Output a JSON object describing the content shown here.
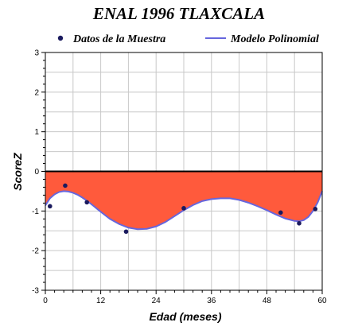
{
  "chart_data": {
    "type": "line",
    "title": "ENAL 1996 TLAXCALA",
    "xlabel": "Edad (meses)",
    "ylabel": "ScoreZ",
    "xlim": [
      0,
      60
    ],
    "ylim": [
      -3,
      3
    ],
    "xticks": [
      0,
      12,
      24,
      36,
      48,
      60
    ],
    "xtick_labels": [
      "0",
      "12",
      "24",
      "36",
      "48",
      "60"
    ],
    "yticks": [
      3,
      2,
      1,
      0,
      -1,
      -2,
      -3
    ],
    "ytick_labels": [
      "3",
      "2",
      "1",
      "0",
      "-1",
      "-2",
      "-3"
    ],
    "grid": true,
    "legend_position": "top",
    "series": [
      {
        "name": "Datos de la Muestra",
        "kind": "scatter",
        "color": "#1a1a5e",
        "x": [
          1,
          4.3,
          9,
          17.5,
          30,
          51,
          55,
          58.5
        ],
        "y": [
          -0.88,
          -0.36,
          -0.78,
          -1.52,
          -0.93,
          -1.04,
          -1.31,
          -0.95
        ]
      },
      {
        "name": "Modelo Polinomial",
        "kind": "line",
        "color": "#6666dd",
        "fill_to_zero": "#ff5a3c",
        "x": [
          0,
          1,
          2,
          3,
          4,
          5,
          6,
          7,
          8,
          9,
          10,
          12,
          14,
          16,
          18,
          20,
          22,
          24,
          26,
          28,
          30,
          32,
          34,
          36,
          38,
          40,
          42,
          44,
          46,
          48,
          50,
          52,
          54,
          55,
          56,
          57,
          58,
          59,
          60
        ],
        "y": [
          -0.86,
          -0.68,
          -0.58,
          -0.52,
          -0.5,
          -0.51,
          -0.54,
          -0.59,
          -0.66,
          -0.74,
          -0.83,
          -1.02,
          -1.2,
          -1.33,
          -1.42,
          -1.46,
          -1.45,
          -1.39,
          -1.28,
          -1.13,
          -0.98,
          -0.85,
          -0.75,
          -0.7,
          -0.68,
          -0.68,
          -0.72,
          -0.79,
          -0.88,
          -0.98,
          -1.09,
          -1.19,
          -1.25,
          -1.26,
          -1.23,
          -1.15,
          -1.0,
          -0.79,
          -0.5
        ]
      }
    ]
  }
}
